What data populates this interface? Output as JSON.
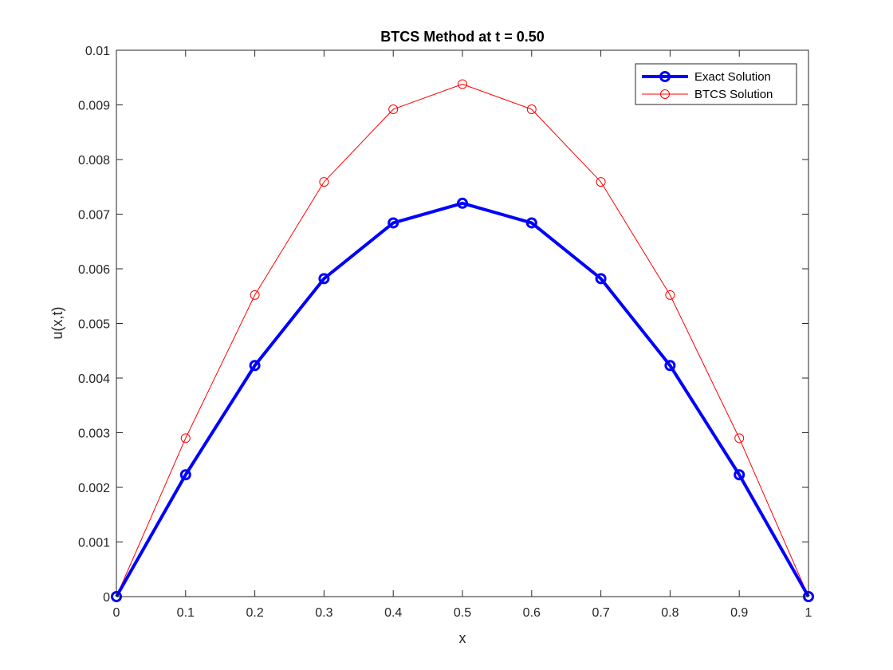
{
  "chart_data": {
    "type": "line",
    "title": "BTCS Method at t = 0.50",
    "xlabel": "x",
    "ylabel": "u(x,t)",
    "xlim": [
      0,
      1
    ],
    "ylim": [
      0,
      0.01
    ],
    "xticks": [
      0,
      0.1,
      0.2,
      0.3,
      0.4,
      0.5,
      0.6,
      0.7,
      0.8,
      0.9,
      1
    ],
    "xtick_labels": [
      "0",
      "0.1",
      "0.2",
      "0.3",
      "0.4",
      "0.5",
      "0.6",
      "0.7",
      "0.8",
      "0.9",
      "1"
    ],
    "yticks": [
      0,
      0.001,
      0.002,
      0.003,
      0.004,
      0.005,
      0.006,
      0.007,
      0.008,
      0.009,
      0.01
    ],
    "ytick_labels": [
      "0",
      "0.001",
      "0.002",
      "0.003",
      "0.004",
      "0.005",
      "0.006",
      "0.007",
      "0.008",
      "0.009",
      "0.01"
    ],
    "grid": false,
    "legend_position": "top-right",
    "x": [
      0,
      0.1,
      0.2,
      0.3,
      0.4,
      0.5,
      0.6,
      0.7,
      0.8,
      0.9,
      1
    ],
    "series": [
      {
        "name": "Exact Solution",
        "color": "#0000ff",
        "marker": "circle",
        "style": "thick",
        "values": [
          0,
          0.00223,
          0.00423,
          0.00582,
          0.00684,
          0.0072,
          0.00684,
          0.00582,
          0.00423,
          0.00223,
          0
        ]
      },
      {
        "name": "BTCS Solution",
        "color": "#ff0000",
        "marker": "circle",
        "style": "thin",
        "values": [
          0,
          0.0029,
          0.00552,
          0.00759,
          0.00892,
          0.00938,
          0.00892,
          0.00759,
          0.00552,
          0.0029,
          0
        ]
      }
    ]
  }
}
